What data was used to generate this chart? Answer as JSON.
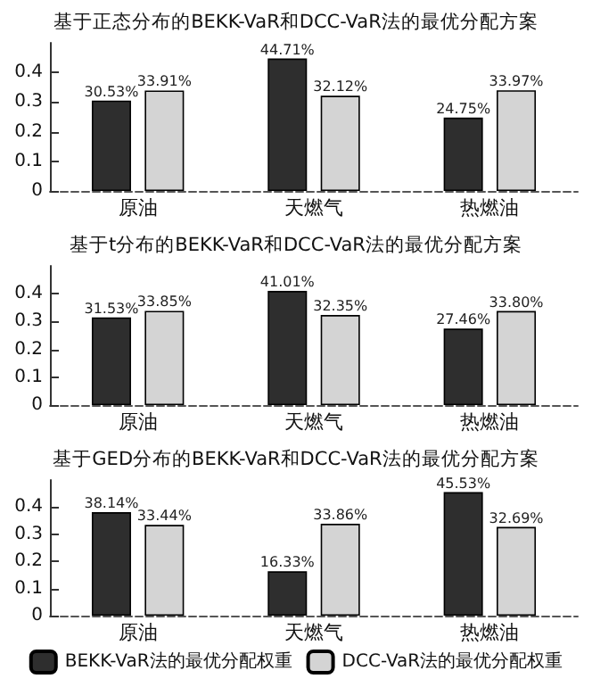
{
  "chart_data": [
    {
      "type": "bar",
      "title": "基于正态分布的BEKK-VaR和DCC-VaR法的最优分配方案",
      "categories": [
        "原油",
        "天燃气",
        "热燃油"
      ],
      "series": [
        {
          "color": "#2e2e2e",
          "values": [
            0.3053,
            0.4471,
            0.2475
          ],
          "value_labels": [
            "30.53%",
            "44.71%",
            "24.75%"
          ]
        },
        {
          "color": "#d4d4d4",
          "values": [
            0.3391,
            0.3212,
            0.3397
          ],
          "value_labels": [
            "33.91%",
            "32.12%",
            "33.97%"
          ]
        }
      ],
      "ylim": [
        0,
        0.5
      ],
      "yticks": [
        0,
        0.1,
        0.2,
        0.3,
        0.4
      ],
      "grid": false,
      "legend": false
    },
    {
      "type": "bar",
      "title": "基于t分布的BEKK-VaR和DCC-VaR法的最优分配方案",
      "categories": [
        "原油",
        "天燃气",
        "热燃油"
      ],
      "series": [
        {
          "color": "#2e2e2e",
          "values": [
            0.3153,
            0.4101,
            0.2746
          ],
          "value_labels": [
            "31.53%",
            "41.01%",
            "27.46%"
          ]
        },
        {
          "color": "#d4d4d4",
          "values": [
            0.3385,
            0.3235,
            0.338
          ],
          "value_labels": [
            "33.85%",
            "32.35%",
            "33.80%"
          ]
        }
      ],
      "ylim": [
        0,
        0.5
      ],
      "yticks": [
        0,
        0.1,
        0.2,
        0.3,
        0.4
      ],
      "grid": false,
      "legend": false
    },
    {
      "type": "bar",
      "title": "基于GED分布的BEKK-VaR和DCC-VaR法的最优分配方案",
      "categories": [
        "原油",
        "天燃气",
        "热燃油"
      ],
      "series": [
        {
          "name": "BEKK-VaR法的最优分配权重",
          "color": "#2e2e2e",
          "values": [
            0.3814,
            0.1633,
            0.4553
          ],
          "value_labels": [
            "38.14%",
            "16.33%",
            "45.53%"
          ]
        },
        {
          "name": "DCC-VaR法的最优分配权重",
          "color": "#d4d4d4",
          "values": [
            0.3344,
            0.3386,
            0.3269
          ],
          "value_labels": [
            "33.44%",
            "33.86%",
            "32.69%"
          ]
        }
      ],
      "ylim": [
        0,
        0.5
      ],
      "yticks": [
        0,
        0.1,
        0.2,
        0.3,
        0.4
      ],
      "grid": false,
      "legend": "bottom"
    }
  ]
}
